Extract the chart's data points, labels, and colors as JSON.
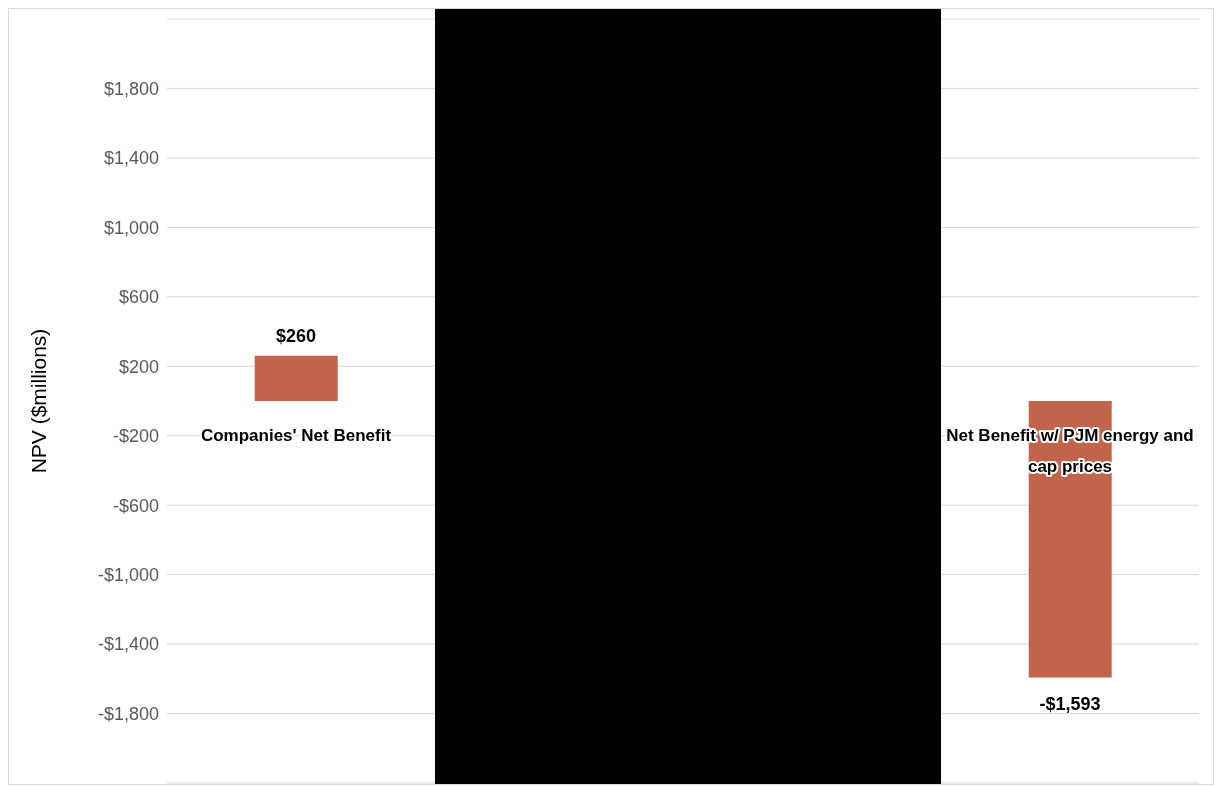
{
  "chart_data": {
    "type": "bar",
    "ylabel": "NPV ($millions)",
    "categories": [
      "Companies' Net Benefit",
      null,
      null,
      "Net Benefit w/ PJM energy and cap prices"
    ],
    "values": [
      260,
      null,
      null,
      -1593
    ],
    "value_labels": [
      "$260",
      null,
      null,
      "-$1,593"
    ],
    "color": "#c0654b",
    "ylim": [
      -2200,
      2200
    ],
    "yticks": [
      {
        "value": -2200,
        "label": null
      },
      {
        "value": -1800,
        "label": "-$1,800"
      },
      {
        "value": -1400,
        "label": "-$1,400"
      },
      {
        "value": -1000,
        "label": "-$1,000"
      },
      {
        "value": -600,
        "label": "-$600"
      },
      {
        "value": -200,
        "label": "-$200"
      },
      {
        "value": 200,
        "label": "$200"
      },
      {
        "value": 600,
        "label": "$600"
      },
      {
        "value": 1000,
        "label": "$1,000"
      },
      {
        "value": 1400,
        "label": "$1,400"
      },
      {
        "value": 1800,
        "label": "$1,800"
      },
      {
        "value": 2200,
        "label": null
      }
    ],
    "grid": "y"
  }
}
